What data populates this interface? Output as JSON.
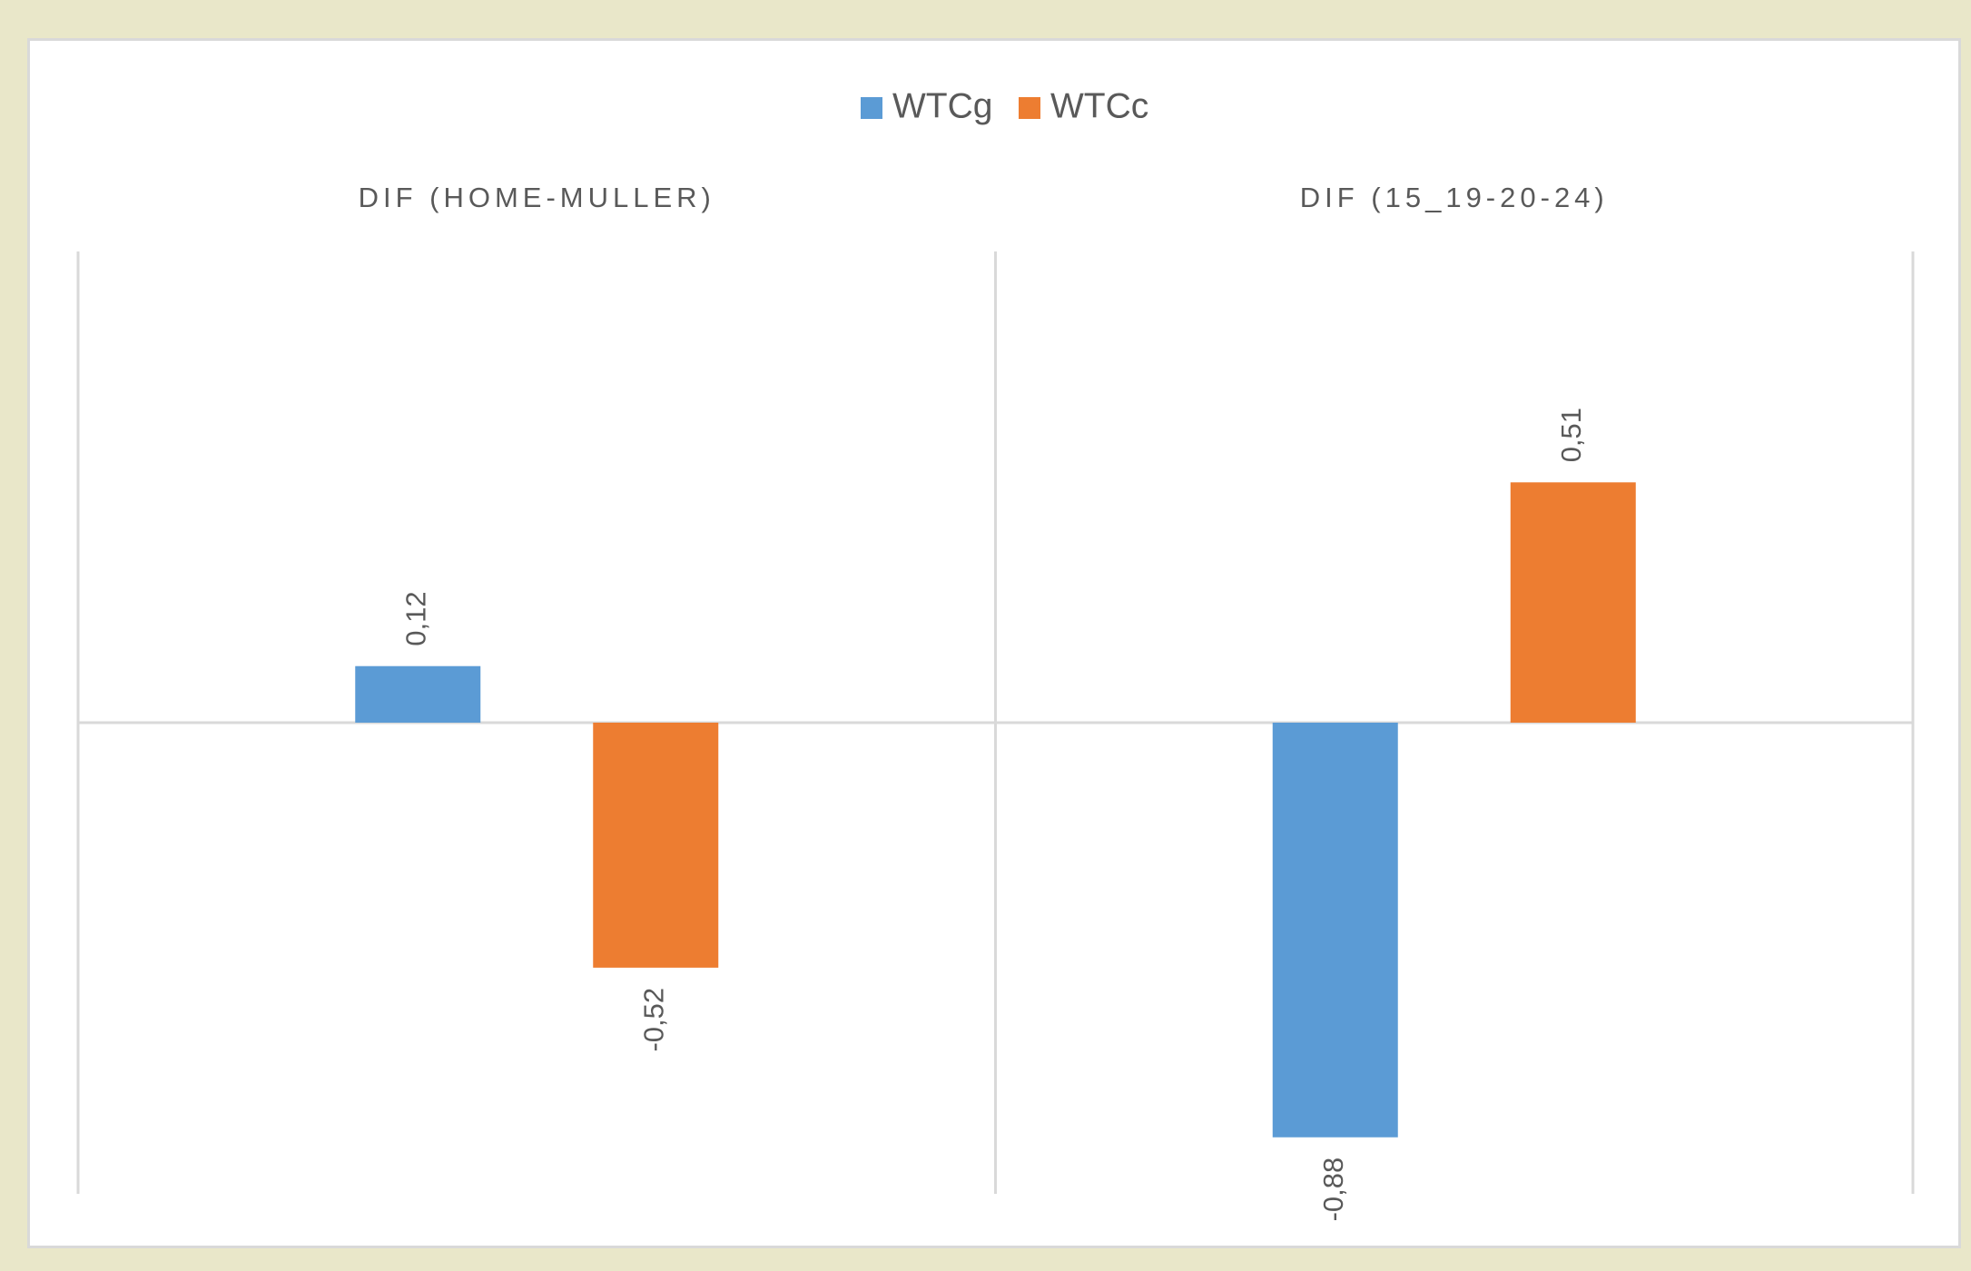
{
  "chart_data": {
    "type": "bar",
    "categories": [
      "DIF (HOME-MULLER)",
      "DIF (15_19-20-24)"
    ],
    "series": [
      {
        "name": "WTCg",
        "color": "#5b9bd5",
        "values": [
          0.12,
          -0.88
        ],
        "value_labels": [
          "0,12",
          "-0,88"
        ]
      },
      {
        "name": "WTCc",
        "color": "#ed7d31",
        "values": [
          -0.52,
          0.51
        ],
        "value_labels": [
          "-0,52",
          "0,51"
        ]
      }
    ],
    "ylim": [
      -1,
      1
    ],
    "legend": "top"
  }
}
